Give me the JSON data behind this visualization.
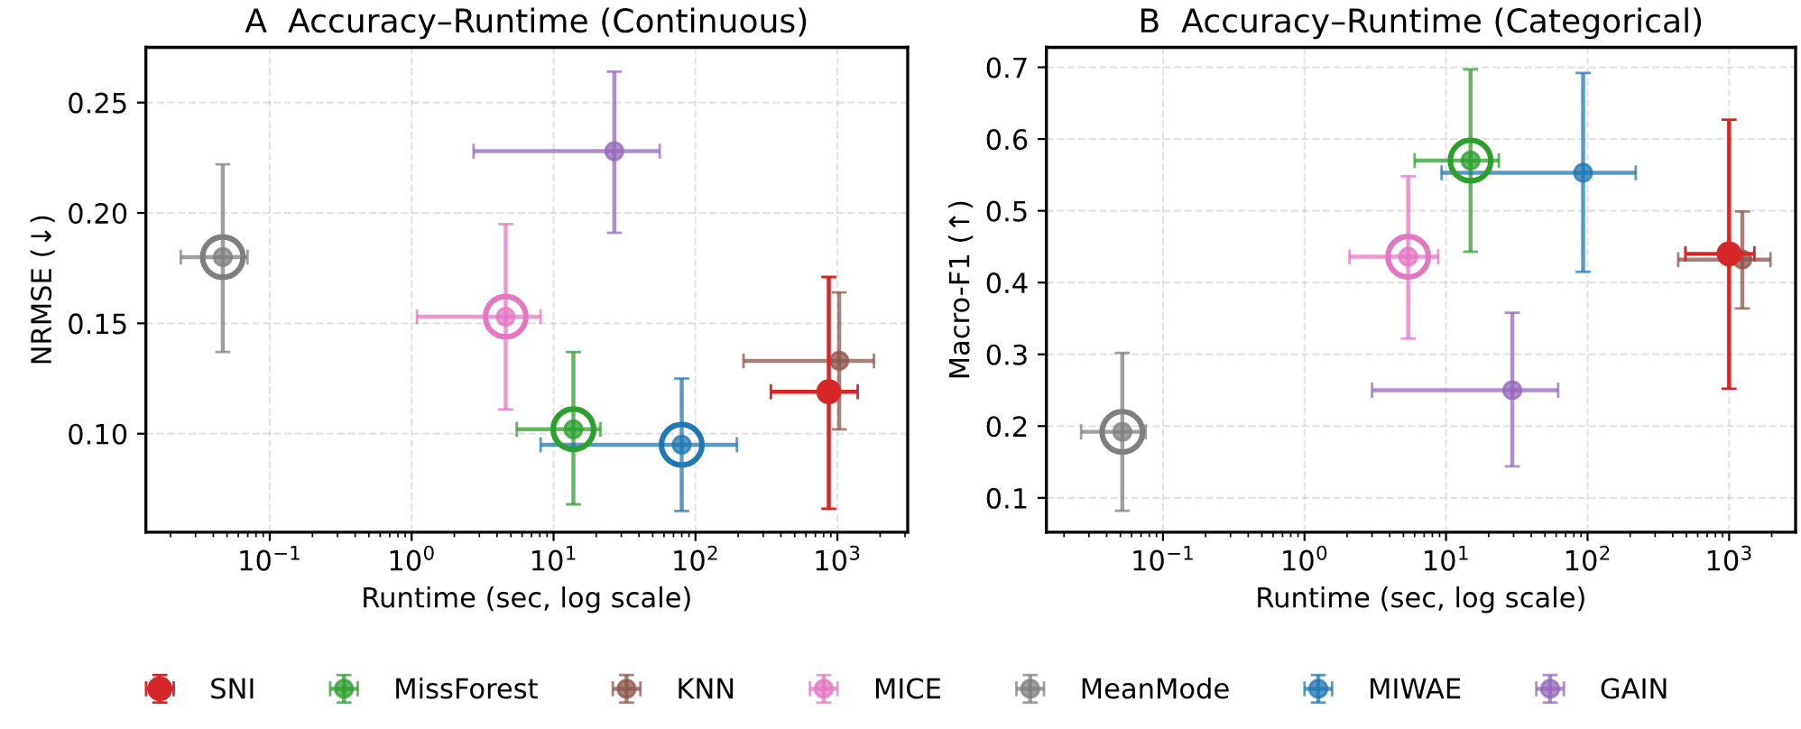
{
  "chart_data": [
    {
      "type": "scatter",
      "title": "A  Accuracy–Runtime (Continuous)",
      "xlabel": "Runtime (sec, log scale)",
      "ylabel": "NRMSE (↓)",
      "log": "x",
      "grid": true,
      "marker": "circle",
      "legend": "bottom",
      "xlim": [
        0.0134,
        3130
      ],
      "ylim": [
        0.0554,
        0.275
      ],
      "xticks": [
        {
          "value": 0.1,
          "label": "10$^{−1}$"
        },
        {
          "value": 1,
          "label": "10$^{0}$"
        },
        {
          "value": 10,
          "label": "10$^{1}$"
        },
        {
          "value": 100,
          "label": "10$^{2}$"
        },
        {
          "value": 1000,
          "label": "10$^{3}$"
        }
      ],
      "yticks": [
        {
          "value": 0.1,
          "label": "0.10"
        },
        0.15,
        {
          "value": 0.2,
          "label": "0.20"
        },
        0.25
      ],
      "series": [
        {
          "name": "SNI",
          "color": "#d62728",
          "x": [
            870
          ],
          "values": [
            0.119
          ],
          "errors": [
            [
              0.066,
              0.171
            ]
          ],
          "xerrors": [
            [
              340,
              1390
            ]
          ]
        },
        {
          "name": "MissForest",
          "color": "#2ca02c",
          "x": [
            13.8
          ],
          "values": [
            0.102
          ],
          "errors": [
            [
              0.068,
              0.137
            ]
          ],
          "xerrors": [
            [
              5.5,
              21.4
            ]
          ]
        },
        {
          "name": "KNN",
          "color": "#8c564b",
          "x": [
            1030
          ],
          "values": [
            0.133
          ],
          "errors": [
            [
              0.102,
              0.164
            ]
          ],
          "xerrors": [
            [
              218,
              1810
            ]
          ]
        },
        {
          "name": "MICE",
          "color": "#e377c2",
          "x": [
            4.6
          ],
          "values": [
            0.153
          ],
          "errors": [
            [
              0.111,
              0.195
            ]
          ],
          "xerrors": [
            [
              1.09,
              8.1
            ]
          ]
        },
        {
          "name": "MeanMode",
          "color": "#7f7f7f",
          "x": [
            0.0467
          ],
          "values": [
            0.18
          ],
          "errors": [
            [
              0.137,
              0.222
            ]
          ],
          "xerrors": [
            [
              0.0236,
              0.0697
            ]
          ]
        },
        {
          "name": "MIWAE",
          "color": "#1f77b4",
          "x": [
            80
          ],
          "values": [
            0.095
          ],
          "errors": [
            [
              0.065,
              0.125
            ]
          ],
          "xerrors": [
            [
              8.1,
              196
            ]
          ]
        },
        {
          "name": "GAIN",
          "color": "#9467bd",
          "x": [
            26.8
          ],
          "values": [
            0.228
          ],
          "errors": [
            [
              0.191,
              0.264
            ]
          ],
          "xerrors": [
            [
              2.73,
              56
            ]
          ]
        },
        {
          "color": "#2ca02c",
          "x": [
            13.8
          ],
          "values": [
            0.102
          ]
        },
        {
          "color": "#e377c2",
          "x": [
            4.6
          ],
          "values": [
            0.153
          ]
        },
        {
          "color": "#7f7f7f",
          "x": [
            0.0467
          ],
          "values": [
            0.18
          ]
        },
        {
          "color": "#1f77b4",
          "x": [
            80
          ],
          "values": [
            0.095
          ]
        }
      ]
    },
    {
      "type": "scatter",
      "title": "B  Accuracy–Runtime (Categorical)",
      "xlabel": "Runtime (sec, log scale)",
      "ylabel": "Macro-F1 (↑)",
      "log": "x",
      "grid": true,
      "marker": "circle",
      "xlim": [
        0.015,
        2950
      ],
      "ylim": [
        0.0522,
        0.7277
      ],
      "xticks": [
        {
          "value": 0.1,
          "label": "10$^{−1}$"
        },
        {
          "value": 1,
          "label": "10$^{0}$"
        },
        {
          "value": 10,
          "label": "10$^{1}$"
        },
        {
          "value": 100,
          "label": "10$^{2}$"
        },
        {
          "value": 1000,
          "label": "10$^{3}$"
        }
      ],
      "yticks": [
        0.1,
        0.2,
        0.3,
        0.4,
        0.5,
        0.6,
        0.7
      ],
      "series": [
        {
          "name": "SNI",
          "color": "#d62728",
          "x": [
            1000
          ],
          "values": [
            0.44
          ],
          "errors": [
            [
              0.252,
              0.627
            ]
          ],
          "xerrors": [
            [
              491,
              1510
            ]
          ]
        },
        {
          "name": "MissForest",
          "color": "#2ca02c",
          "x": [
            14.9
          ],
          "values": [
            0.57
          ],
          "errors": [
            [
              0.443,
              0.697
            ]
          ],
          "xerrors": [
            [
              6.0,
              23.6
            ]
          ]
        },
        {
          "name": "KNN",
          "color": "#8c564b",
          "x": [
            1240
          ],
          "values": [
            0.432
          ],
          "errors": [
            [
              0.364,
              0.499
            ]
          ],
          "xerrors": [
            [
              437,
              1960
            ]
          ]
        },
        {
          "name": "MICE",
          "color": "#e377c2",
          "x": [
            5.4
          ],
          "values": [
            0.436
          ],
          "errors": [
            [
              0.322,
              0.548
            ]
          ],
          "xerrors": [
            [
              2.08,
              8.8
            ]
          ]
        },
        {
          "name": "MeanMode",
          "color": "#7f7f7f",
          "x": [
            0.0516
          ],
          "values": [
            0.192
          ],
          "errors": [
            [
              0.082,
              0.302
            ]
          ],
          "xerrors": [
            [
              0.0264,
              0.0754
            ]
          ]
        },
        {
          "name": "MIWAE",
          "color": "#1f77b4",
          "x": [
            93
          ],
          "values": [
            0.553
          ],
          "errors": [
            [
              0.415,
              0.692
            ]
          ],
          "xerrors": [
            [
              9.3,
              219
            ]
          ]
        },
        {
          "name": "GAIN",
          "color": "#9467bd",
          "x": [
            29.4
          ],
          "values": [
            0.25
          ],
          "errors": [
            [
              0.144,
              0.358
            ]
          ],
          "xerrors": [
            [
              3.0,
              62
            ]
          ]
        },
        {
          "color": "#2ca02c",
          "x": [
            14.9
          ],
          "values": [
            0.57
          ]
        },
        {
          "color": "#e377c2",
          "x": [
            5.4
          ],
          "values": [
            0.436
          ]
        },
        {
          "color": "#7f7f7f",
          "x": [
            0.0516
          ],
          "values": [
            0.192
          ]
        }
      ]
    }
  ]
}
